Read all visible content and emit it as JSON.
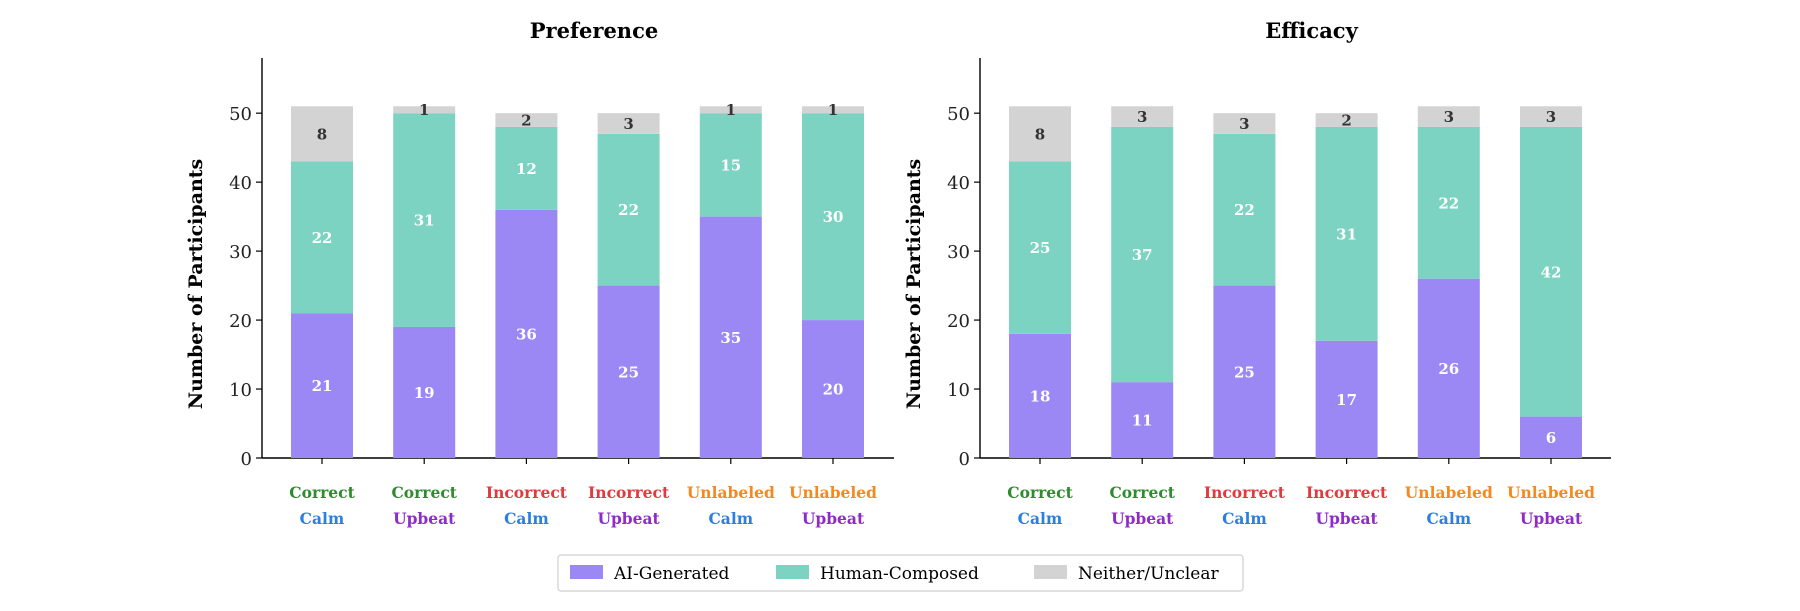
{
  "colors": {
    "ai": "#9B88F5",
    "human": "#7DD3C2",
    "neither": "#D3D3D3",
    "correct": "#2E8B2E",
    "incorrect": "#E0393E",
    "unlabeled": "#F5891F",
    "calm": "#2B7FE0",
    "upbeat": "#8E2CC9",
    "axis": "#000000",
    "label_light": "#ffffff",
    "label_dark": "#333333"
  },
  "legend": {
    "items": [
      {
        "label": "AI-Generated",
        "color_key": "ai"
      },
      {
        "label": "Human-Composed",
        "color_key": "human"
      },
      {
        "label": "Neither/Unclear",
        "color_key": "neither"
      }
    ]
  },
  "chart_data": [
    {
      "type": "bar",
      "stacked": true,
      "title": "Preference",
      "ylabel": "Number of Participants",
      "ylim": [
        0,
        58
      ],
      "yticks": [
        0,
        10,
        20,
        30,
        40,
        50
      ],
      "categories": [
        {
          "line1": "Correct",
          "line1_color": "correct",
          "line2": "Calm",
          "line2_color": "calm"
        },
        {
          "line1": "Correct",
          "line1_color": "correct",
          "line2": "Upbeat",
          "line2_color": "upbeat"
        },
        {
          "line1": "Incorrect",
          "line1_color": "incorrect",
          "line2": "Calm",
          "line2_color": "calm"
        },
        {
          "line1": "Incorrect",
          "line1_color": "incorrect",
          "line2": "Upbeat",
          "line2_color": "upbeat"
        },
        {
          "line1": "Unlabeled",
          "line1_color": "unlabeled",
          "line2": "Calm",
          "line2_color": "calm"
        },
        {
          "line1": "Unlabeled",
          "line1_color": "unlabeled",
          "line2": "Upbeat",
          "line2_color": "upbeat"
        }
      ],
      "series": [
        {
          "name": "AI-Generated",
          "color_key": "ai",
          "values": [
            21,
            19,
            36,
            25,
            35,
            20
          ]
        },
        {
          "name": "Human-Composed",
          "color_key": "human",
          "values": [
            22,
            31,
            12,
            22,
            15,
            30
          ]
        },
        {
          "name": "Neither/Unclear",
          "color_key": "neither",
          "values": [
            8,
            1,
            2,
            3,
            1,
            1
          ]
        }
      ]
    },
    {
      "type": "bar",
      "stacked": true,
      "title": "Efficacy",
      "ylabel": "Number of Participants",
      "ylim": [
        0,
        58
      ],
      "yticks": [
        0,
        10,
        20,
        30,
        40,
        50
      ],
      "categories": [
        {
          "line1": "Correct",
          "line1_color": "correct",
          "line2": "Calm",
          "line2_color": "calm"
        },
        {
          "line1": "Correct",
          "line1_color": "correct",
          "line2": "Upbeat",
          "line2_color": "upbeat"
        },
        {
          "line1": "Incorrect",
          "line1_color": "incorrect",
          "line2": "Calm",
          "line2_color": "calm"
        },
        {
          "line1": "Incorrect",
          "line1_color": "incorrect",
          "line2": "Upbeat",
          "line2_color": "upbeat"
        },
        {
          "line1": "Unlabeled",
          "line1_color": "unlabeled",
          "line2": "Calm",
          "line2_color": "calm"
        },
        {
          "line1": "Unlabeled",
          "line1_color": "unlabeled",
          "line2": "Upbeat",
          "line2_color": "upbeat"
        }
      ],
      "series": [
        {
          "name": "AI-Generated",
          "color_key": "ai",
          "values": [
            18,
            11,
            25,
            17,
            26,
            6
          ]
        },
        {
          "name": "Human-Composed",
          "color_key": "human",
          "values": [
            25,
            37,
            22,
            31,
            22,
            42
          ]
        },
        {
          "name": "Neither/Unclear",
          "color_key": "neither",
          "values": [
            8,
            3,
            3,
            2,
            3,
            3
          ]
        }
      ]
    }
  ]
}
